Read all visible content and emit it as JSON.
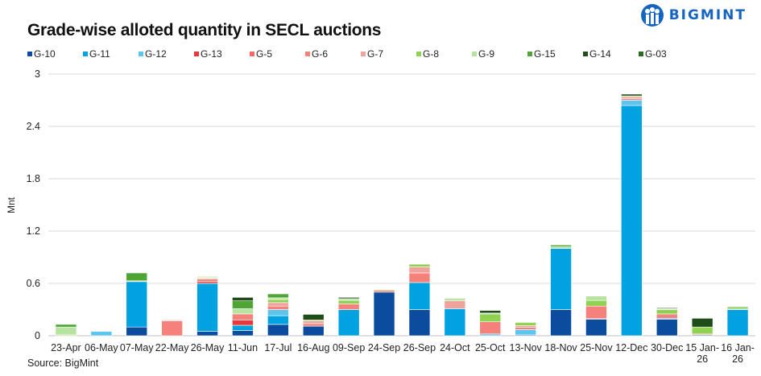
{
  "logo": {
    "text": "BIGMINT"
  },
  "source": "Source: BigMint",
  "chart_data": {
    "type": "bar",
    "stacked": true,
    "title": "Grade-wise alloted quantity in SECL auctions",
    "xlabel": "",
    "ylabel": "Mnt",
    "ylim": [
      0,
      3
    ],
    "yticks": [
      0,
      0.6,
      1.2,
      1.8,
      2.4,
      3
    ],
    "grid": true,
    "legend_position": "top-left",
    "categories": [
      "23-Apr",
      "06-May",
      "07-May",
      "22-May",
      "26-May",
      "11-Jun",
      "17-Jul",
      "16-Aug",
      "09-Sep",
      "24-Sep",
      "26-Sep",
      "24-Oct",
      "25-Oct",
      "13-Nov",
      "18-Nov",
      "25-Nov",
      "12-Dec",
      "30-Dec",
      "15 Jan-26",
      "16 Jan-26"
    ],
    "series": [
      {
        "name": "G-10",
        "color": "#0b4c9e",
        "values": [
          0,
          0,
          0.1,
          0,
          0.05,
          0.06,
          0.13,
          0.11,
          0,
          0.5,
          0.3,
          0,
          0,
          0.01,
          0.3,
          0.19,
          0,
          0.19,
          0.01,
          0
        ]
      },
      {
        "name": "G-11",
        "color": "#00a2e0",
        "values": [
          0,
          0,
          0.52,
          0,
          0.55,
          0.06,
          0.1,
          0,
          0.3,
          0,
          0.31,
          0.31,
          0,
          0,
          0.7,
          0,
          2.64,
          0.01,
          0,
          0.3
        ]
      },
      {
        "name": "G-12",
        "color": "#5cc5ee",
        "values": [
          0,
          0.05,
          0,
          0,
          0,
          0,
          0.07,
          0,
          0,
          0,
          0,
          0,
          0.02,
          0.06,
          0,
          0,
          0.06,
          0,
          0,
          0
        ]
      },
      {
        "name": "G-13",
        "color": "#e8383a",
        "values": [
          0,
          0,
          0,
          0,
          0.02,
          0.06,
          0,
          0,
          0,
          0,
          0,
          0,
          0,
          0,
          0,
          0.01,
          0,
          0,
          0,
          0
        ]
      },
      {
        "name": "G-5",
        "color": "#f06a6a",
        "values": [
          0,
          0,
          0,
          0,
          0,
          0,
          0,
          0,
          0,
          0,
          0,
          0,
          0,
          0,
          0,
          0,
          0,
          0,
          0,
          0
        ]
      },
      {
        "name": "G-6",
        "color": "#f4817a",
        "values": [
          0,
          0,
          0,
          0.17,
          0.03,
          0.07,
          0.04,
          0.03,
          0.065,
          0.02,
          0.11,
          0,
          0.14,
          0.025,
          0,
          0.14,
          0.02,
          0.05,
          0.01,
          0.005
        ]
      },
      {
        "name": "G-7",
        "color": "#f0a39d",
        "values": [
          0,
          0,
          0,
          0.01,
          0.01,
          0,
          0.04,
          0.03,
          0,
          0,
          0.07,
          0.09,
          0,
          0.02,
          0,
          0,
          0.02,
          0,
          0,
          0
        ]
      },
      {
        "name": "G-8",
        "color": "#8fd150",
        "values": [
          0.01,
          0,
          0,
          0,
          0.01,
          0,
          0.035,
          0.01,
          0.04,
          0.01,
          0.03,
          0,
          0.09,
          0.035,
          0,
          0.065,
          0.01,
          0.05,
          0.08,
          0.02
        ]
      },
      {
        "name": "G-9",
        "color": "#b7e3a0",
        "values": [
          0.09,
          0,
          0.01,
          0,
          0.01,
          0.06,
          0.02,
          0,
          0.02,
          0,
          0,
          0.03,
          0.01,
          0.01,
          0.02,
          0.05,
          0,
          0.01,
          0,
          0
        ]
      },
      {
        "name": "G-15",
        "color": "#4ea535",
        "values": [
          0.03,
          0,
          0.09,
          0,
          0,
          0.09,
          0.045,
          0,
          0,
          0,
          0,
          0,
          0,
          0,
          0.02,
          0,
          0,
          0,
          0,
          0.01
        ]
      },
      {
        "name": "G-14",
        "color": "#1f4d1a",
        "values": [
          0,
          0,
          0,
          0,
          0,
          0.04,
          0,
          0.065,
          0.015,
          0,
          0,
          0,
          0.03,
          0,
          0,
          0,
          0.02,
          0.01,
          0.1,
          0
        ]
      },
      {
        "name": "G-03",
        "color": "#2d6b23",
        "values": [
          0,
          0,
          0,
          0,
          0,
          0,
          0,
          0,
          0,
          0,
          0,
          0,
          0,
          0,
          0,
          0,
          0,
          0,
          0,
          0
        ]
      }
    ]
  }
}
